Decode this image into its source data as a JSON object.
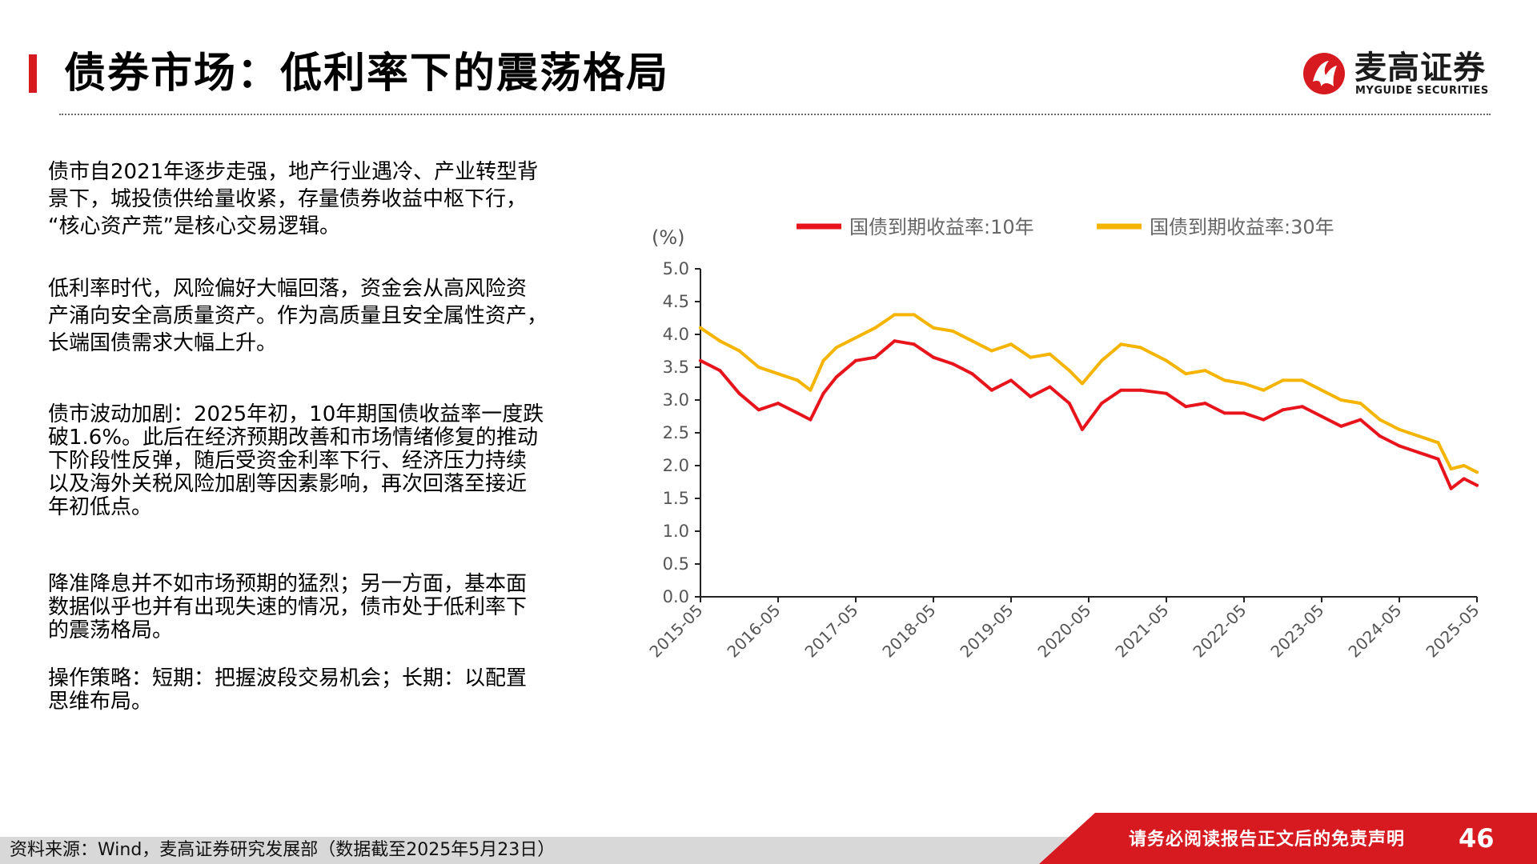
{
  "header": {
    "title": "债券市场：低利率下的震荡格局",
    "logo_cn": "麦高证券",
    "logo_en": "MYGUIDE SECURITIES",
    "accent_color": "#d71920"
  },
  "body": {
    "paragraphs": [
      "债市自2021年逐步走强，地产行业遇冷、产业转型背\n景下，城投债供给量收紧，存量债券收益中枢下行，\n“核心资产荒”是核心交易逻辑。",
      "低利率时代，风险偏好大幅回落，资金会从高风险资\n产涌向安全高质量资产。作为高质量且安全属性资产，\n长端国债需求大幅上升。",
      "债市波动加剧：2025年初，10年期国债收益率一度跌\n破1.6%。此后在经济预期改善和市场情绪修复的推动\n下阶段性反弹，随后受资金利率下行、经济压力持续\n以及海外关税风险加剧等因素影响，再次回落至接近\n年初低点。",
      "降准降息并不如市场预期的猛烈；另一方面，基本面\n数据似乎也并有出现失速的情况，债市处于低利率下\n的震荡格局。",
      "操作策略：短期：把握波段交易机会；长期：以配置\n思维布局。"
    ]
  },
  "chart_data": {
    "type": "line",
    "ylabel": "(%)",
    "ylim": [
      0,
      5.0
    ],
    "yticks": [
      "0.0",
      "0.5",
      "1.0",
      "1.5",
      "2.0",
      "2.5",
      "3.0",
      "3.5",
      "4.0",
      "4.5",
      "5.0"
    ],
    "xticks": [
      "2015-05",
      "2016-05",
      "2017-05",
      "2018-05",
      "2019-05",
      "2020-05",
      "2021-05",
      "2022-05",
      "2023-05",
      "2024-05",
      "2025-05"
    ],
    "xlim": [
      "2015-05",
      "2025-05"
    ],
    "grid": false,
    "legend_position": "top",
    "series": [
      {
        "name": "国债到期收益率:10年",
        "color": "#e8141c",
        "x": [
          "2015-05",
          "2015-08",
          "2015-11",
          "2016-02",
          "2016-05",
          "2016-08",
          "2016-10",
          "2016-12",
          "2017-02",
          "2017-05",
          "2017-08",
          "2017-11",
          "2018-02",
          "2018-05",
          "2018-08",
          "2018-11",
          "2019-02",
          "2019-05",
          "2019-08",
          "2019-11",
          "2020-02",
          "2020-04",
          "2020-07",
          "2020-10",
          "2021-01",
          "2021-05",
          "2021-08",
          "2021-11",
          "2022-02",
          "2022-05",
          "2022-08",
          "2022-11",
          "2023-02",
          "2023-05",
          "2023-08",
          "2023-11",
          "2024-02",
          "2024-05",
          "2024-08",
          "2024-11",
          "2025-01",
          "2025-03",
          "2025-05"
        ],
        "values": [
          3.6,
          3.45,
          3.1,
          2.85,
          2.95,
          2.8,
          2.7,
          3.1,
          3.35,
          3.6,
          3.65,
          3.9,
          3.85,
          3.65,
          3.55,
          3.4,
          3.15,
          3.3,
          3.05,
          3.2,
          2.95,
          2.55,
          2.95,
          3.15,
          3.15,
          3.1,
          2.9,
          2.95,
          2.8,
          2.8,
          2.7,
          2.85,
          2.9,
          2.75,
          2.6,
          2.7,
          2.45,
          2.3,
          2.2,
          2.1,
          1.65,
          1.8,
          1.7
        ]
      },
      {
        "name": "国债到期收益率:30年",
        "color": "#f4b400",
        "x": [
          "2015-05",
          "2015-08",
          "2015-11",
          "2016-02",
          "2016-05",
          "2016-08",
          "2016-10",
          "2016-12",
          "2017-02",
          "2017-05",
          "2017-08",
          "2017-11",
          "2018-02",
          "2018-05",
          "2018-08",
          "2018-11",
          "2019-02",
          "2019-05",
          "2019-08",
          "2019-11",
          "2020-02",
          "2020-04",
          "2020-07",
          "2020-10",
          "2021-01",
          "2021-05",
          "2021-08",
          "2021-11",
          "2022-02",
          "2022-05",
          "2022-08",
          "2022-11",
          "2023-02",
          "2023-05",
          "2023-08",
          "2023-11",
          "2024-02",
          "2024-05",
          "2024-08",
          "2024-11",
          "2025-01",
          "2025-03",
          "2025-05"
        ],
        "values": [
          4.1,
          3.9,
          3.75,
          3.5,
          3.4,
          3.3,
          3.15,
          3.6,
          3.8,
          3.95,
          4.1,
          4.3,
          4.3,
          4.1,
          4.05,
          3.9,
          3.75,
          3.85,
          3.65,
          3.7,
          3.45,
          3.25,
          3.6,
          3.85,
          3.8,
          3.6,
          3.4,
          3.45,
          3.3,
          3.25,
          3.15,
          3.3,
          3.3,
          3.15,
          3.0,
          2.95,
          2.7,
          2.55,
          2.45,
          2.35,
          1.95,
          2.0,
          1.9
        ]
      }
    ]
  },
  "footer": {
    "source": "资料来源：Wind，麦高证券研究发展部（数据截至2025年5月23日）",
    "disclaimer": "请务必阅读报告正文后的免责声明",
    "page": "46"
  }
}
